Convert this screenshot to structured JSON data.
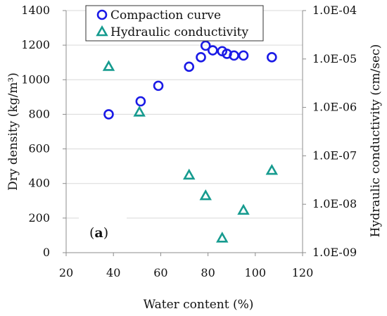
{
  "chart_data": {
    "type": "scatter",
    "xlabel": "Water content (%)",
    "ylabel": "Dry density (kg/m³)",
    "y2label": "Hydraulic conductivity (cm/sec)",
    "xlim": [
      20,
      120
    ],
    "ylim": [
      0,
      1400
    ],
    "y2lim": [
      1e-09,
      0.0001
    ],
    "y2scale": "log",
    "x_ticks": [
      "20",
      "40",
      "60",
      "80",
      "100",
      "120"
    ],
    "y_ticks": [
      "0",
      "200",
      "400",
      "600",
      "800",
      "1000",
      "1200",
      "1400"
    ],
    "y2_ticks": [
      "1.0E-09",
      "1.0E-08",
      "1.0E-07",
      "1.0E-06",
      "1.0E-05",
      "1.0E-04"
    ],
    "panel_label_open": "(",
    "panel_label_bold": "a",
    "panel_label_close": ")",
    "legend_placement": "top",
    "series": [
      {
        "name": "Compaction curve",
        "marker": "circle",
        "axis": "left",
        "color": "#1a1ae6",
        "x": [
          38,
          51.5,
          59,
          72,
          77,
          79,
          82,
          86,
          88,
          91,
          95,
          107
        ],
        "y": [
          800,
          875,
          965,
          1075,
          1130,
          1197,
          1170,
          1165,
          1150,
          1140,
          1140,
          1130
        ]
      },
      {
        "name": "Hydraulic conductivity",
        "marker": "triangle",
        "axis": "right",
        "color": "#169b8f",
        "x": [
          38,
          51,
          72,
          79,
          86,
          95,
          107
        ],
        "y": [
          7e-06,
          8e-07,
          4e-08,
          1.5e-08,
          2e-09,
          7.5e-09,
          5e-08
        ]
      }
    ]
  }
}
